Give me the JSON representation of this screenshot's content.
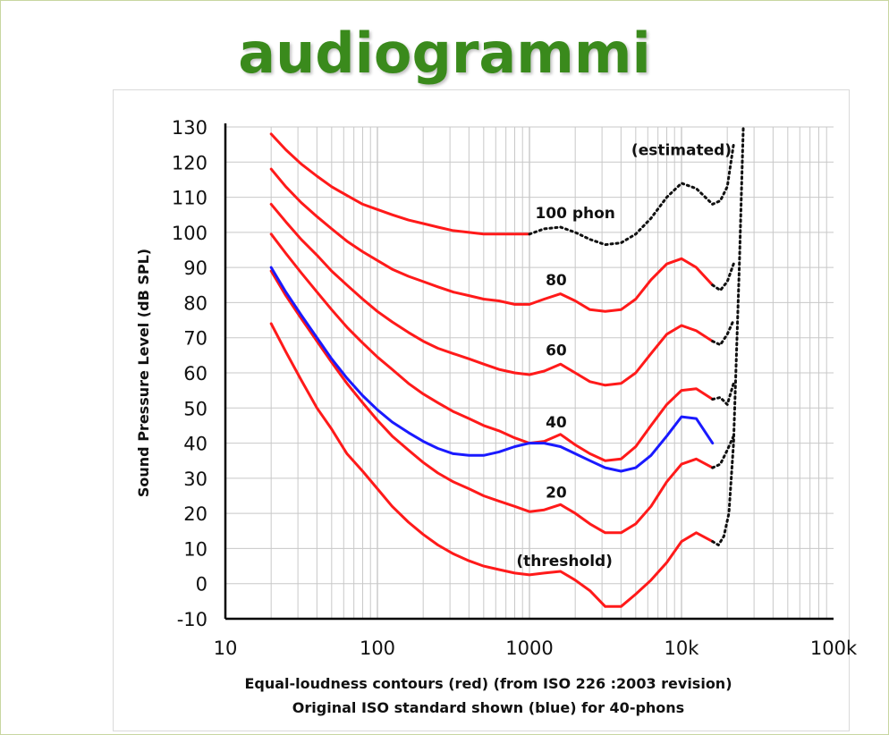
{
  "slide": {
    "title": "audiogrammi",
    "title_color": "#3a8a1c"
  },
  "chart_data": {
    "type": "line",
    "xscale": "log",
    "xlim": [
      10,
      100000
    ],
    "ylim": [
      -10,
      130
    ],
    "x_ticks": [
      10,
      100,
      1000,
      10000,
      100000
    ],
    "x_tick_labels": [
      "10",
      "100",
      "1000",
      "10k",
      "100k"
    ],
    "y_ticks": [
      -10,
      0,
      10,
      20,
      30,
      40,
      50,
      60,
      70,
      80,
      90,
      100,
      110,
      120,
      130
    ],
    "ylabel": "Sound Pressure Level (dB SPL)",
    "caption_line1": "Equal-loudness contours (red)  (from ISO 226 :2003 revision)",
    "caption_line2": "Original  ISO standard shown (blue) for 40-phons",
    "grid": true,
    "colors": {
      "iso226": "#ff1a1a",
      "original": "#1a1aff",
      "estimated": "#111111",
      "grid": "#c8c8c8"
    },
    "series": [
      {
        "label": "(threshold)",
        "color": "#ff1a1a",
        "style": "solid",
        "x": [
          20,
          25,
          31.5,
          40,
          50,
          63,
          80,
          100,
          125,
          160,
          200,
          250,
          315,
          400,
          500,
          630,
          800,
          1000,
          1250,
          1600,
          2000,
          2500,
          3150,
          4000,
          5000,
          6300,
          8000,
          10000,
          12500,
          16000
        ],
        "y": [
          74,
          66,
          58,
          50,
          44,
          37,
          32,
          27,
          22,
          17.5,
          14,
          11,
          8.5,
          6.5,
          5,
          4,
          3,
          2.5,
          3,
          3.5,
          1,
          -2,
          -6.5,
          -6.5,
          -3,
          1,
          6,
          12,
          14.5,
          12
        ]
      },
      {
        "label": "(threshold)",
        "color": "#111111",
        "style": "dotted",
        "x": [
          16000,
          17500,
          19000,
          20500,
          22000,
          24000,
          25500
        ],
        "y": [
          12,
          11,
          13.5,
          20,
          40,
          90,
          130
        ]
      },
      {
        "label": "20",
        "color": "#ff1a1a",
        "style": "solid",
        "x": [
          20,
          25,
          31.5,
          40,
          50,
          63,
          80,
          100,
          125,
          160,
          200,
          250,
          315,
          400,
          500,
          630,
          800,
          1000,
          1250,
          1600,
          2000,
          2500,
          3150,
          4000,
          5000,
          6300,
          8000,
          10000,
          12500,
          16000
        ],
        "y": [
          89,
          82,
          75.5,
          69,
          63,
          57,
          51.5,
          46.5,
          42,
          38,
          34.5,
          31.5,
          29,
          27,
          25,
          23.5,
          22,
          20.5,
          21,
          22.5,
          20,
          17,
          14.5,
          14.5,
          17,
          22,
          29,
          34,
          35.5,
          33
        ]
      },
      {
        "label": "20",
        "color": "#111111",
        "style": "dotted",
        "x": [
          16000,
          18000,
          20000,
          22000
        ],
        "y": [
          33,
          34,
          38,
          42
        ]
      },
      {
        "label": "40",
        "color": "#ff1a1a",
        "style": "solid",
        "x": [
          20,
          25,
          31.5,
          40,
          50,
          63,
          80,
          100,
          125,
          160,
          200,
          250,
          315,
          400,
          500,
          630,
          800,
          1000,
          1250,
          1600,
          2000,
          2500,
          3150,
          4000,
          5000,
          6300,
          8000,
          10000,
          12500,
          16000
        ],
        "y": [
          99.5,
          94,
          88.5,
          83,
          78,
          73,
          68.5,
          64.5,
          61,
          57,
          54,
          51.5,
          49,
          47,
          45,
          43.5,
          41.5,
          40,
          40.5,
          42.5,
          39.5,
          37,
          35,
          35.5,
          39,
          45,
          51,
          55,
          55.5,
          52.5
        ]
      },
      {
        "label": "40",
        "color": "#111111",
        "style": "dotted",
        "x": [
          16000,
          18000,
          20000,
          22000
        ],
        "y": [
          52.5,
          53,
          51,
          57
        ]
      },
      {
        "label": "60",
        "color": "#ff1a1a",
        "style": "solid",
        "x": [
          20,
          25,
          31.5,
          40,
          50,
          63,
          80,
          100,
          125,
          160,
          200,
          250,
          315,
          400,
          500,
          630,
          800,
          1000,
          1250,
          1600,
          2000,
          2500,
          3150,
          4000,
          5000,
          6300,
          8000,
          10000,
          12500,
          16000
        ],
        "y": [
          108,
          103,
          98,
          93.5,
          89,
          85,
          81,
          77.5,
          74.5,
          71.5,
          69,
          67,
          65.5,
          64,
          62.5,
          61,
          60,
          59.5,
          60.5,
          62.5,
          60,
          57.5,
          56.5,
          57,
          60,
          65.5,
          71,
          73.5,
          72,
          69
        ]
      },
      {
        "label": "60",
        "color": "#111111",
        "style": "dotted",
        "x": [
          16000,
          18000,
          20000,
          22000
        ],
        "y": [
          69,
          68,
          71,
          75
        ]
      },
      {
        "label": "80",
        "color": "#ff1a1a",
        "style": "solid",
        "x": [
          20,
          25,
          31.5,
          40,
          50,
          63,
          80,
          100,
          125,
          160,
          200,
          250,
          315,
          400,
          500,
          630,
          800,
          1000,
          1250,
          1600,
          2000,
          2500,
          3150,
          4000,
          5000,
          6300,
          8000,
          10000,
          12500,
          16000
        ],
        "y": [
          118,
          113,
          108.5,
          104.5,
          101,
          97.5,
          94.5,
          92,
          89.5,
          87.5,
          86,
          84.5,
          83,
          82,
          81,
          80.5,
          79.5,
          79.5,
          81,
          82.5,
          80.5,
          78,
          77.5,
          78,
          81,
          86.5,
          91,
          92.5,
          90,
          85
        ]
      },
      {
        "label": "80",
        "color": "#111111",
        "style": "dotted",
        "x": [
          16000,
          18000,
          20000,
          22000
        ],
        "y": [
          85,
          83.5,
          86,
          91
        ]
      },
      {
        "label": "100 phon",
        "color": "#ff1a1a",
        "style": "solid",
        "x": [
          20,
          25,
          31.5,
          40,
          50,
          63,
          80,
          100,
          125,
          160,
          200,
          250,
          315,
          400,
          500,
          630,
          800,
          1000
        ],
        "y": [
          128,
          123.5,
          119.5,
          116,
          113,
          110.5,
          108,
          106.5,
          105,
          103.5,
          102.5,
          101.5,
          100.5,
          100,
          99.5,
          99.5,
          99.5,
          99.5
        ]
      },
      {
        "label": "(estimated)",
        "color": "#111111",
        "style": "dotted",
        "x": [
          1000,
          1250,
          1600,
          2000,
          2500,
          3150,
          4000,
          5000,
          6300,
          8000,
          10000,
          12500,
          16000,
          18000,
          20000,
          22000
        ],
        "y": [
          99.5,
          101,
          101.5,
          100,
          98,
          96.5,
          97,
          99.5,
          104,
          110,
          114,
          112.5,
          108,
          109,
          113,
          125
        ]
      },
      {
        "label": "Original ISO 40-phons",
        "color": "#1a1aff",
        "style": "solid",
        "x": [
          20,
          25,
          31.5,
          40,
          50,
          63,
          80,
          100,
          125,
          160,
          200,
          250,
          315,
          400,
          500,
          630,
          800,
          1000,
          1250,
          1600,
          2000,
          2500,
          3150,
          4000,
          5000,
          6300,
          8000,
          10000,
          12500,
          16000
        ],
        "y": [
          90,
          83,
          76.5,
          70,
          64,
          58.5,
          53.5,
          49.5,
          46,
          43,
          40.5,
          38.5,
          37,
          36.5,
          36.5,
          37.5,
          39,
          40,
          40,
          39,
          37,
          35,
          33,
          32,
          33,
          36.5,
          42,
          47.5,
          47,
          40
        ]
      }
    ],
    "annotations": [
      {
        "text": "(estimated)",
        "x": 10000,
        "y": 122
      },
      {
        "text": "100 phon",
        "x": 2000,
        "y": 104
      },
      {
        "text": "80",
        "x": 1500,
        "y": 85
      },
      {
        "text": "60",
        "x": 1500,
        "y": 65
      },
      {
        "text": "40",
        "x": 1500,
        "y": 44.5
      },
      {
        "text": "20",
        "x": 1500,
        "y": 24.5
      },
      {
        "text": "(threshold)",
        "x": 1700,
        "y": 5
      }
    ]
  }
}
